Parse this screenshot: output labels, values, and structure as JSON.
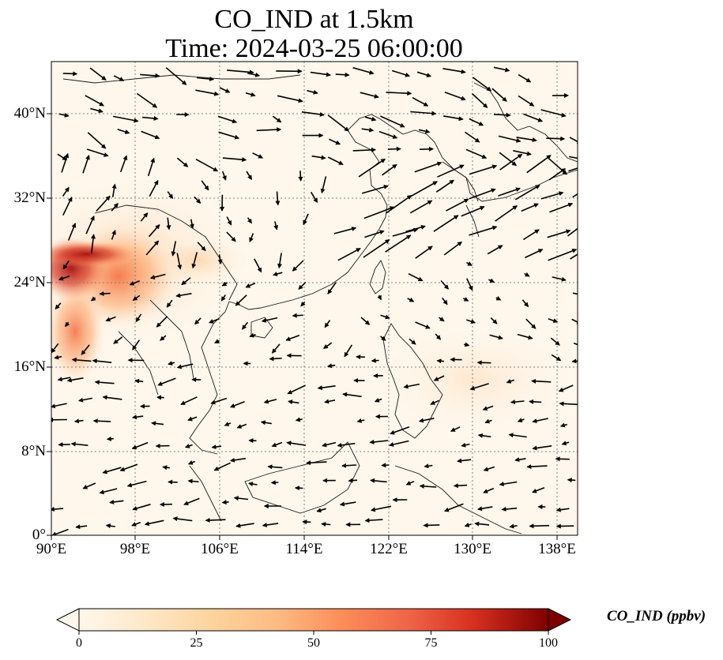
{
  "title": {
    "line1": "CO_IND at 1.5km",
    "line2": "Time: 2024-03-25 06:00:00"
  },
  "map": {
    "type": "heatmap with wind vectors",
    "projection": "plate carree",
    "lon_range": [
      90,
      140
    ],
    "lat_range": [
      0,
      44.5
    ],
    "gridlines": "dotted",
    "x_ticks": [
      "90°E",
      "98°E",
      "106°E",
      "114°E",
      "122°E",
      "130°E",
      "138°E"
    ],
    "y_ticks": [
      "0°",
      "8°N",
      "16°N",
      "24°N",
      "32°N",
      "40°N"
    ],
    "colormap": "OrRd",
    "colors": {
      "low": "#fff7ec",
      "mid": "#fc8d59",
      "high": "#7f0000",
      "coast": "#1a1a1a",
      "grid": "#808080",
      "arrow": "#000000"
    }
  },
  "colorbar": {
    "label": "CO_IND (ppbv)",
    "ticks": [
      "0",
      "25",
      "50",
      "75",
      "100"
    ],
    "range": [
      0,
      100
    ],
    "extend": "both"
  }
}
